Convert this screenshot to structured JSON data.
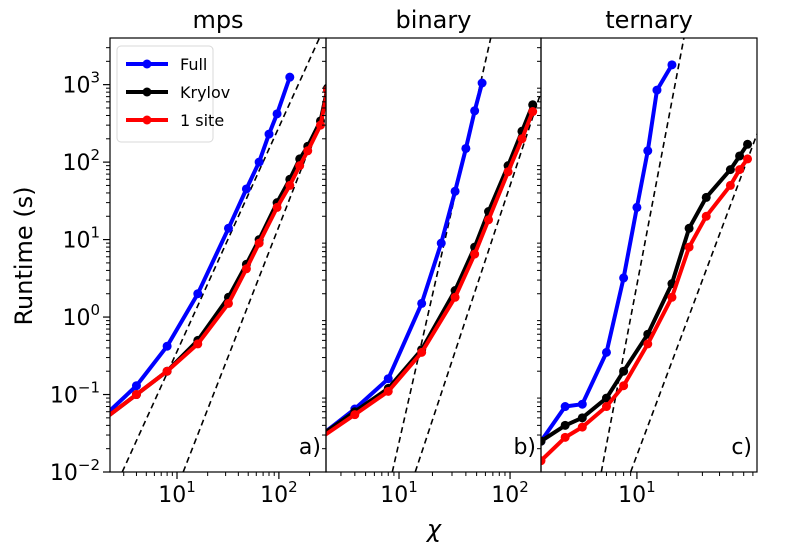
{
  "figure": {
    "ylabel": "Runtime (s)",
    "xlabel": "χ"
  },
  "legend": {
    "location": "upper-left of panel a",
    "entries": [
      {
        "label": "Full",
        "color": "#0000ff"
      },
      {
        "label": "Krylov",
        "color": "#000000"
      },
      {
        "label": "1 site",
        "color": "#ff0000"
      }
    ]
  },
  "colors": {
    "Full": "#0000ff",
    "Krylov": "#000000",
    "1 site": "#ff0000",
    "reference": "#000000"
  },
  "chart_data": [
    {
      "type": "line",
      "title": "mps",
      "panel_label": "a)",
      "xscale": "log",
      "yscale": "log",
      "xlim": [
        2.2,
        290
      ],
      "ylim": [
        0.01,
        4000
      ],
      "xticks": [
        {
          "value": 10,
          "label": "10",
          "exp": "1"
        },
        {
          "value": 100,
          "label": "10",
          "exp": "2"
        }
      ],
      "yticks": [
        {
          "value": 0.01,
          "label": "10",
          "exp": "−2"
        },
        {
          "value": 0.1,
          "label": "10",
          "exp": "−1"
        },
        {
          "value": 1,
          "label": "10",
          "exp": "0"
        },
        {
          "value": 10,
          "label": "10",
          "exp": "1"
        },
        {
          "value": 100,
          "label": "10",
          "exp": "2"
        },
        {
          "value": 1000,
          "label": "10",
          "exp": "3"
        }
      ],
      "series": [
        {
          "name": "Full",
          "x": [
            2,
            4,
            8,
            16,
            32,
            48,
            64,
            80,
            96,
            128
          ],
          "y": [
            0.055,
            0.13,
            0.42,
            2.0,
            14,
            45,
            100,
            230,
            420,
            1250
          ]
        },
        {
          "name": "Krylov",
          "x": [
            2,
            4,
            8,
            16,
            32,
            48,
            64,
            96,
            128,
            160,
            192,
            256,
            300
          ],
          "y": [
            0.05,
            0.1,
            0.2,
            0.5,
            1.8,
            4.8,
            10,
            30,
            60,
            110,
            160,
            340,
            900
          ]
        },
        {
          "name": "1 site",
          "x": [
            2,
            4,
            8,
            16,
            32,
            48,
            64,
            96,
            128,
            160,
            192,
            256,
            300
          ],
          "y": [
            0.05,
            0.1,
            0.2,
            0.45,
            1.5,
            4.2,
            9,
            26,
            50,
            90,
            140,
            300,
            850
          ]
        }
      ],
      "reference_lines": [
        {
          "x": [
            2.9,
            250
          ],
          "y": [
            0.01,
            4000
          ]
        },
        {
          "x": [
            11.5,
            300
          ],
          "y": [
            0.01,
            600
          ]
        }
      ]
    },
    {
      "type": "line",
      "title": "binary",
      "panel_label": "b)",
      "xscale": "log",
      "yscale": "log",
      "xlim": [
        2.2,
        190
      ],
      "ylim": [
        0.01,
        4000
      ],
      "xticks": [
        {
          "value": 10,
          "label": "10",
          "exp": "1"
        },
        {
          "value": 100,
          "label": "10",
          "exp": "2"
        }
      ],
      "yticks": [],
      "series": [
        {
          "name": "Full",
          "x": [
            2,
            4,
            8,
            16,
            24,
            32,
            40,
            48,
            56
          ],
          "y": [
            0.03,
            0.065,
            0.16,
            1.5,
            9,
            42,
            150,
            460,
            1050
          ]
        },
        {
          "name": "Krylov",
          "x": [
            2,
            4,
            8,
            16,
            32,
            48,
            64,
            96,
            128,
            160
          ],
          "y": [
            0.03,
            0.06,
            0.12,
            0.38,
            2.2,
            8,
            23,
            90,
            250,
            550
          ]
        },
        {
          "name": "1 site",
          "x": [
            2,
            4,
            8,
            16,
            32,
            48,
            64,
            96,
            128,
            160
          ],
          "y": [
            0.028,
            0.055,
            0.11,
            0.35,
            1.8,
            6.5,
            18,
            75,
            200,
            450
          ]
        }
      ],
      "reference_lines": [
        {
          "x": [
            8.7,
            67
          ],
          "y": [
            0.01,
            4000
          ]
        },
        {
          "x": [
            14,
            190
          ],
          "y": [
            0.01,
            800
          ]
        }
      ]
    },
    {
      "type": "line",
      "title": "ternary",
      "panel_label": "c)",
      "xscale": "log",
      "yscale": "log",
      "xlim": [
        2.0,
        75
      ],
      "ylim": [
        0.01,
        4000
      ],
      "xticks": [
        {
          "value": 10,
          "label": "10",
          "exp": "1"
        }
      ],
      "yticks": [],
      "series": [
        {
          "name": "Full",
          "x": [
            2,
            3,
            4,
            6,
            8,
            10,
            12,
            14,
            18
          ],
          "y": [
            0.025,
            0.07,
            0.075,
            0.35,
            3.2,
            26,
            140,
            850,
            1800
          ]
        },
        {
          "name": "Krylov",
          "x": [
            2,
            3,
            4,
            6,
            8,
            12,
            18,
            24,
            32,
            48,
            56,
            64
          ],
          "y": [
            0.025,
            0.04,
            0.05,
            0.09,
            0.2,
            0.6,
            2.7,
            14,
            35,
            80,
            120,
            170
          ]
        },
        {
          "name": "1 site",
          "x": [
            2,
            3,
            4,
            6,
            8,
            12,
            18,
            24,
            32,
            48,
            56,
            64
          ],
          "y": [
            0.014,
            0.028,
            0.038,
            0.07,
            0.13,
            0.45,
            1.8,
            8,
            20,
            50,
            80,
            110
          ]
        }
      ],
      "reference_lines": [
        {
          "x": [
            5.5,
            22
          ],
          "y": [
            0.01,
            4000
          ]
        },
        {
          "x": [
            9,
            75
          ],
          "y": [
            0.01,
            230
          ]
        }
      ]
    }
  ]
}
